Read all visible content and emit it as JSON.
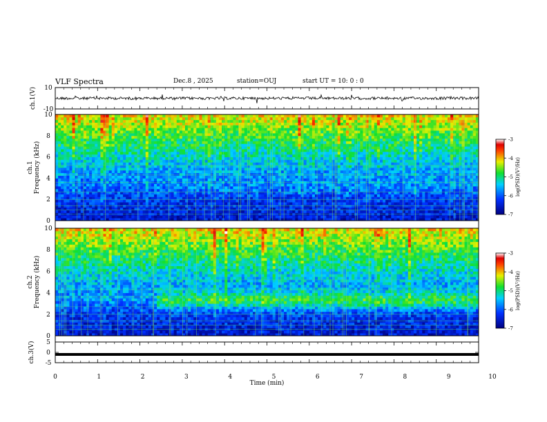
{
  "header": {
    "title": "VLF Spectra",
    "date": "Dec.8 , 2025",
    "station": "station=OUJ",
    "start": "start UT =  10: 0 : 0"
  },
  "chart_data": [
    {
      "type": "line",
      "ylabel": "ch.1(V)",
      "ylim": [
        -10,
        10
      ],
      "yticks": [
        "10",
        "-10"
      ],
      "description_values": {
        "baseline_volts": 0
      },
      "xlim": [
        0,
        10
      ]
    },
    {
      "type": "heatmap",
      "ylabel": "ch.1\nFrequency (kHz)",
      "ylabel_lines": [
        "ch.1",
        "Frequency (kHz)"
      ],
      "ylim": [
        0,
        10
      ],
      "yticks": [
        "0",
        "2",
        "4",
        "6",
        "8",
        "10"
      ],
      "xlim": [
        0,
        10
      ],
      "colorbar": {
        "label": "log(PSD)(V²/Hz)",
        "range": [
          -7,
          -3
        ],
        "ticks": [
          "-3",
          "-4",
          "-5",
          "-6",
          "-7"
        ]
      }
    },
    {
      "type": "heatmap",
      "ylabel_lines": [
        "ch.2",
        "Frequency (kHz)"
      ],
      "ylim": [
        0,
        10
      ],
      "yticks": [
        "0",
        "2",
        "4",
        "6",
        "8",
        "10"
      ],
      "xlim": [
        0,
        10
      ],
      "colorbar": {
        "label": "log(PSD)(V²/Hz)",
        "range": [
          -7,
          -3
        ],
        "ticks": [
          "-3",
          "-4",
          "-5",
          "-6",
          "-7"
        ]
      }
    },
    {
      "type": "line",
      "ylabel": "ch.3(V)",
      "ylim": [
        -5,
        5
      ],
      "yticks": [
        "5",
        "0",
        "-5"
      ],
      "constant_value_volts": -1,
      "xlim": [
        0,
        10
      ],
      "xlabel": "Time (min)",
      "xticks": [
        "0",
        "1",
        "2",
        "3",
        "4",
        "5",
        "6",
        "7",
        "8",
        "9",
        "10"
      ]
    }
  ]
}
